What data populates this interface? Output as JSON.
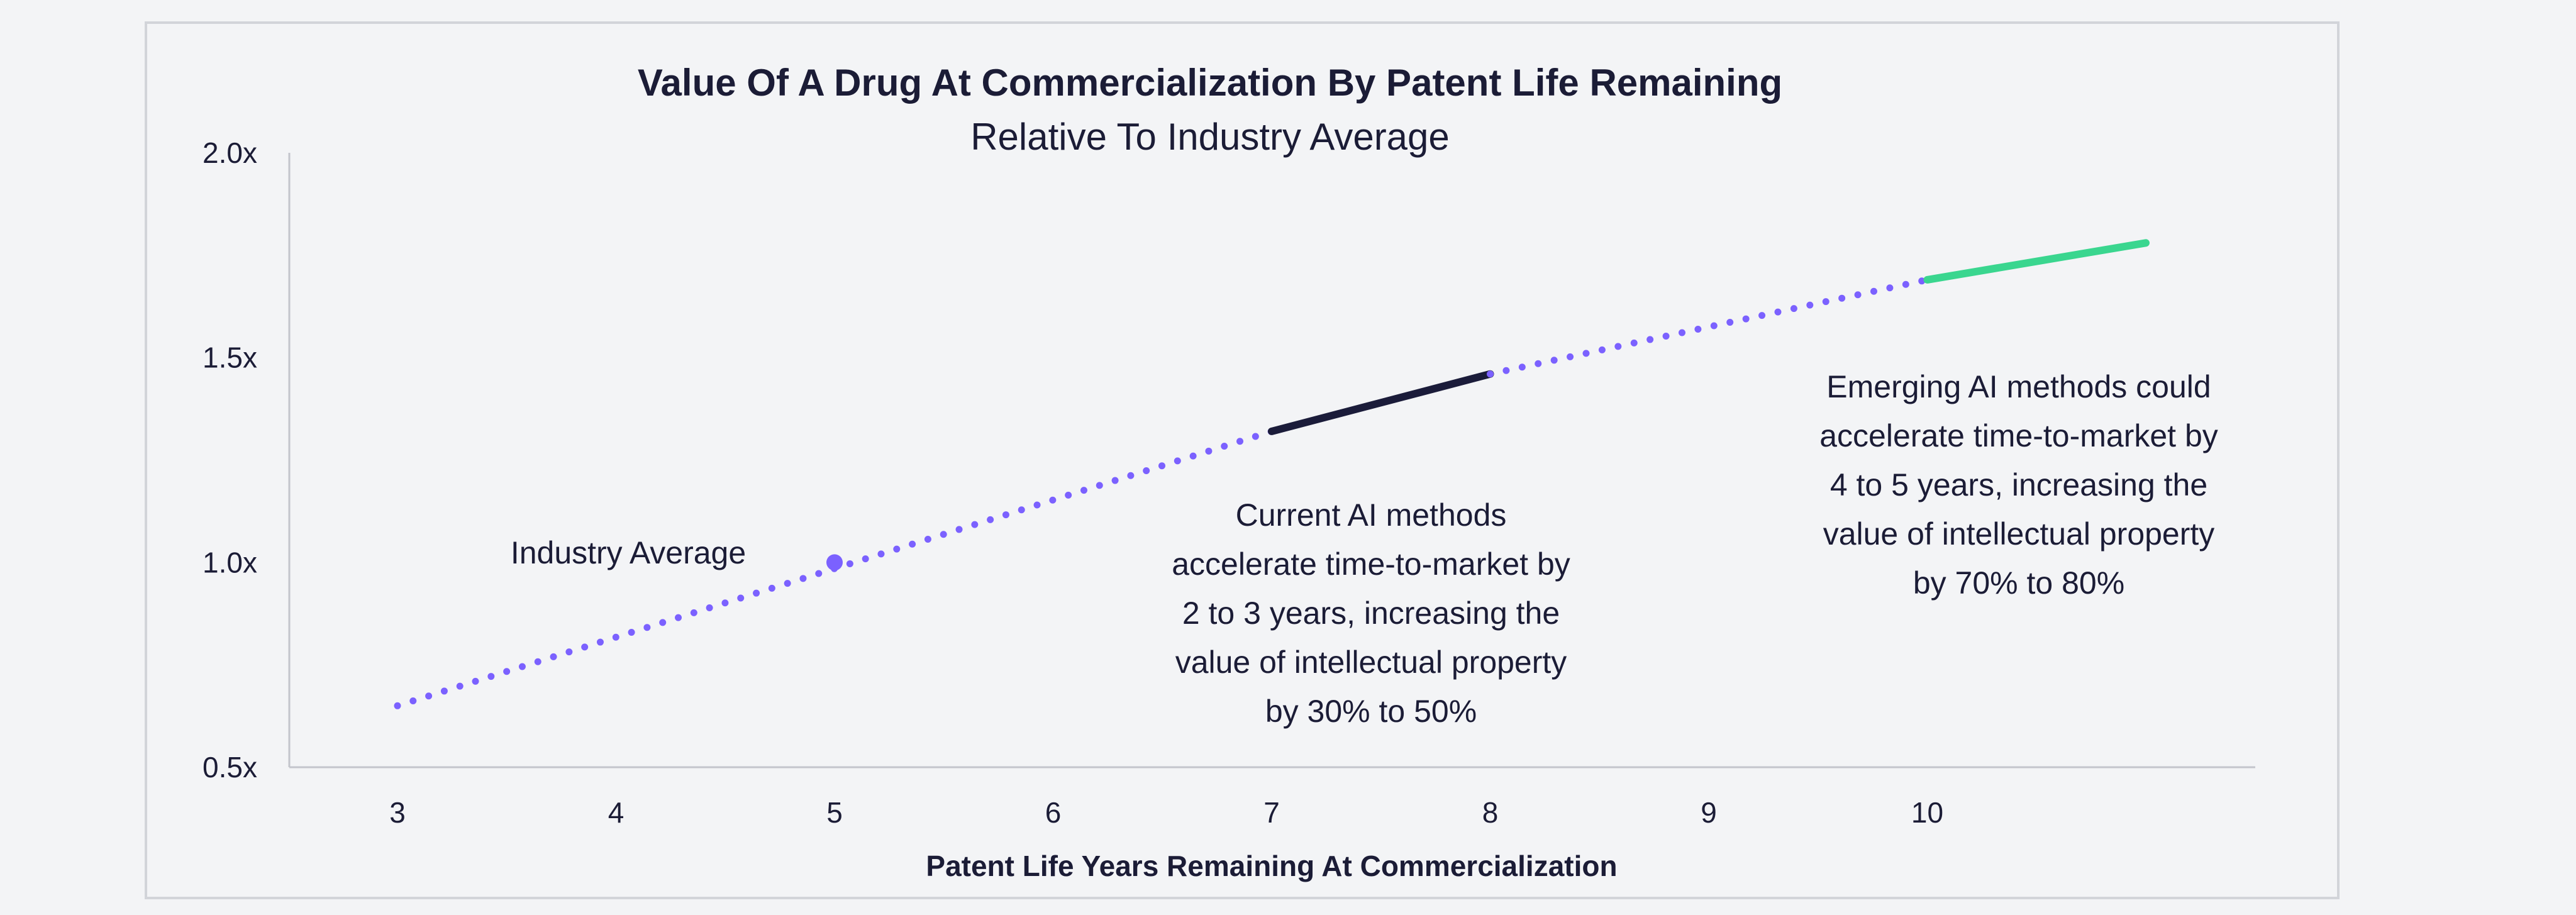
{
  "chart_data": {
    "type": "line",
    "title": "Value Of A Drug At Commercialization By Patent Life Remaining",
    "subtitle": "Relative To Industry Average",
    "xlabel": "Patent Life Years Remaining At Commercialization",
    "ylabel": "",
    "xlim": [
      2.5,
      11.5
    ],
    "ylim": [
      0.5,
      2.0
    ],
    "x_ticks": [
      "3",
      "4",
      "5",
      "6",
      "7",
      "8",
      "9",
      "10"
    ],
    "y_ticks": [
      "0.5x",
      "1.0x",
      "1.5x",
      "2.0x"
    ],
    "grid": false,
    "line": {
      "x": [
        3,
        11
      ],
      "y": [
        0.65,
        1.78
      ]
    },
    "series": [
      {
        "x": [
          3,
          7
        ],
        "y": [
          0.65,
          1.32
        ],
        "style": "dotted",
        "color": "#7b61ff"
      },
      {
        "x": [
          7,
          8
        ],
        "y": [
          1.32,
          1.46
        ],
        "style": "solid",
        "color": "#1b1c3a"
      },
      {
        "x": [
          8,
          10
        ],
        "y": [
          1.46,
          1.69
        ],
        "style": "dotted",
        "color": "#7b61ff"
      },
      {
        "x": [
          10,
          11
        ],
        "y": [
          1.69,
          1.78
        ],
        "style": "solid",
        "color": "#3ad68f"
      }
    ],
    "marker": {
      "x": 5,
      "y": 1.0,
      "color": "#7b61ff"
    },
    "annotations": [
      {
        "key": "industry",
        "lines": [
          "Industry Average"
        ]
      },
      {
        "key": "current",
        "lines": [
          "Current AI methods",
          "accelerate time-to-market by",
          "2 to 3 years, increasing the",
          "value of intellectual property",
          "by 30% to 50%"
        ]
      },
      {
        "key": "emerging",
        "lines": [
          "Emerging AI methods could",
          "accelerate time-to-market by",
          "4 to 5 years, increasing the",
          "value of intellectual property",
          "by 70% to 80%"
        ]
      }
    ]
  }
}
